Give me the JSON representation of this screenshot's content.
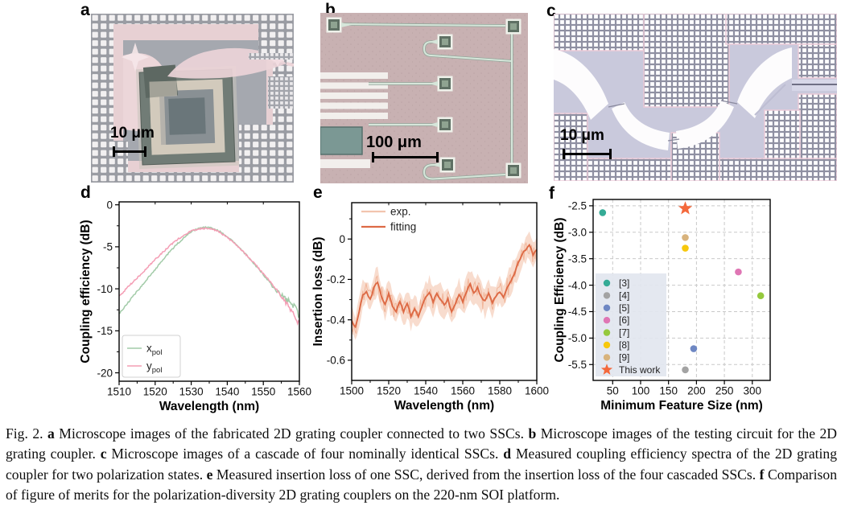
{
  "figure": {
    "panels": {
      "a": {
        "label": "a",
        "scale_bar": "10 μm"
      },
      "b": {
        "label": "b",
        "scale_bar": "100 μm"
      },
      "c": {
        "label": "c",
        "scale_bar": "10 μm"
      },
      "d": {
        "label": "d"
      },
      "e": {
        "label": "e"
      },
      "f": {
        "label": "f"
      }
    }
  },
  "chart_data": [
    {
      "id": "d",
      "type": "line",
      "title": "",
      "xlabel": "Wavelength (nm)",
      "ylabel": "Coupling efficiency (dB)",
      "xlim": [
        1510,
        1560
      ],
      "ylim": [
        -21,
        0.35
      ],
      "xticks": [
        1510,
        1520,
        1530,
        1540,
        1550,
        1560
      ],
      "xtick_labels": [
        "1510",
        "1520",
        "1530",
        "1540",
        "1550",
        "1560"
      ],
      "yticks": [
        0,
        -5,
        -10,
        -15,
        -20
      ],
      "ytick_labels": [
        "0",
        "-5",
        "-10",
        "-15",
        "-20"
      ],
      "grid": false,
      "legend_position": "lower-left",
      "series": [
        {
          "name": "x_pol",
          "legend_main": "x",
          "legend_sub": "pol",
          "color": "#a2cba8",
          "x_start": 1510,
          "x_step": 2,
          "points_y": [
            -13.0,
            -11.9,
            -10.8,
            -9.8,
            -8.7,
            -7.7,
            -6.6,
            -5.6,
            -4.7,
            -3.9,
            -3.2,
            -2.8,
            -2.7,
            -2.8,
            -3.2,
            -3.8,
            -4.5,
            -5.4,
            -6.3,
            -7.3,
            -8.3,
            -9.4,
            -10.4,
            -11.2,
            -11.9,
            -13.0
          ]
        },
        {
          "name": "y_pol",
          "legend_main": "y",
          "legend_sub": "pol",
          "color": "#f49db4",
          "x_start": 1510,
          "x_step": 2,
          "points_y": [
            -10.9,
            -10.0,
            -9.1,
            -8.3,
            -7.4,
            -6.5,
            -5.7,
            -4.9,
            -4.2,
            -3.6,
            -3.1,
            -2.9,
            -2.8,
            -2.9,
            -3.3,
            -3.9,
            -4.6,
            -5.4,
            -6.3,
            -7.2,
            -8.2,
            -9.2,
            -10.3,
            -11.5,
            -12.8,
            -14.2
          ]
        }
      ]
    },
    {
      "id": "e",
      "type": "line",
      "title": "",
      "xlabel": "Wavelength (nm)",
      "ylabel": "Insertion loss (dB)",
      "xlim": [
        1500,
        1600
      ],
      "ylim": [
        -0.7,
        0.18
      ],
      "xticks": [
        1500,
        1520,
        1540,
        1560,
        1580,
        1600
      ],
      "xtick_labels": [
        "1500",
        "1520",
        "1540",
        "1560",
        "1580",
        "1600"
      ],
      "yticks": [
        0,
        -0.2,
        -0.4,
        -0.6
      ],
      "ytick_labels": [
        "0",
        "-0.2",
        "-0.4",
        "-0.6"
      ],
      "grid": false,
      "legend_position": "upper-left",
      "series": [
        {
          "name": "exp.",
          "role": "band",
          "color": "#f6d0bd",
          "line_color": "#f0b093"
        },
        {
          "name": "fitting",
          "role": "fit",
          "color": "#dd6a45",
          "x_start": 1500,
          "x_step": 2,
          "points_y": [
            -0.4,
            -0.44,
            -0.36,
            -0.28,
            -0.26,
            -0.3,
            -0.24,
            -0.21,
            -0.28,
            -0.32,
            -0.27,
            -0.33,
            -0.36,
            -0.31,
            -0.36,
            -0.32,
            -0.38,
            -0.34,
            -0.38,
            -0.33,
            -0.29,
            -0.26,
            -0.31,
            -0.27,
            -0.3,
            -0.33,
            -0.3,
            -0.36,
            -0.32,
            -0.27,
            -0.31,
            -0.26,
            -0.22,
            -0.27,
            -0.24,
            -0.29,
            -0.31,
            -0.27,
            -0.32,
            -0.28,
            -0.26,
            -0.29,
            -0.24,
            -0.21,
            -0.17,
            -0.12,
            -0.08,
            -0.05,
            -0.03,
            -0.08,
            -0.05
          ]
        }
      ]
    },
    {
      "id": "f",
      "type": "scatter",
      "title": "",
      "xlabel": "Minimum Feature Size (nm)",
      "ylabel": "Coupling Efficiency (dB)",
      "xlim": [
        15,
        332
      ],
      "ylim": [
        -5.8,
        -2.38
      ],
      "xticks": [
        50,
        100,
        150,
        200,
        250,
        300
      ],
      "xtick_labels": [
        "50",
        "100",
        "150",
        "200",
        "250",
        "300"
      ],
      "yticks": [
        -2.5,
        -3.0,
        -3.5,
        -4.0,
        -4.5,
        -5.0,
        -5.5
      ],
      "ytick_labels": [
        "-2.5",
        "-3.0",
        "-3.5",
        "-4.0",
        "-4.5",
        "-5.0",
        "-5.5"
      ],
      "grid": true,
      "legend_position": "lower-left",
      "legend_bg": "#e2e6ef",
      "points": [
        {
          "label": "[3]",
          "x": 32,
          "y": -2.63,
          "color": "#35ab96",
          "marker": "circle"
        },
        {
          "label": "[4]",
          "x": 180,
          "y": -5.6,
          "color": "#a3a3a3",
          "marker": "circle"
        },
        {
          "label": "[5]",
          "x": 195,
          "y": -5.2,
          "color": "#6e87c3",
          "marker": "circle"
        },
        {
          "label": "[6]",
          "x": 275,
          "y": -3.75,
          "color": "#df76b4",
          "marker": "circle"
        },
        {
          "label": "[7]",
          "x": 315,
          "y": -4.2,
          "color": "#95c93d",
          "marker": "circle"
        },
        {
          "label": "[8]",
          "x": 180,
          "y": -3.3,
          "color": "#f7c80c",
          "marker": "circle"
        },
        {
          "label": "[9]",
          "x": 180,
          "y": -3.1,
          "color": "#d8b37c",
          "marker": "circle"
        },
        {
          "label": "This work",
          "x": 180,
          "y": -2.55,
          "color": "#f4693c",
          "marker": "star"
        }
      ]
    }
  ],
  "caption": {
    "segments": [
      {
        "t": "Fig. 2. ",
        "b": false
      },
      {
        "t": "a",
        "b": true
      },
      {
        "t": " Microscope images of the fabricated 2D grating coupler connected to two SSCs. ",
        "b": false
      },
      {
        "t": "b",
        "b": true
      },
      {
        "t": " Microscope images of the testing circuit for the 2D grating coupler. ",
        "b": false
      },
      {
        "t": "c",
        "b": true
      },
      {
        "t": " Microscope images of a cascade of four nominally identical SSCs. ",
        "b": false
      },
      {
        "t": "d",
        "b": true
      },
      {
        "t": " Measured coupling efficiency spectra of the 2D grating coupler for two polarization states. ",
        "b": false
      },
      {
        "t": "e",
        "b": true
      },
      {
        "t": " Measured insertion loss of one SSC, derived from the insertion loss of the four cascaded SSCs. ",
        "b": false
      },
      {
        "t": "f",
        "b": true
      },
      {
        "t": " Comparison of figure of merits for the polarization-diversity 2D grating couplers on the 220-nm SOI platform.",
        "b": false
      }
    ]
  }
}
